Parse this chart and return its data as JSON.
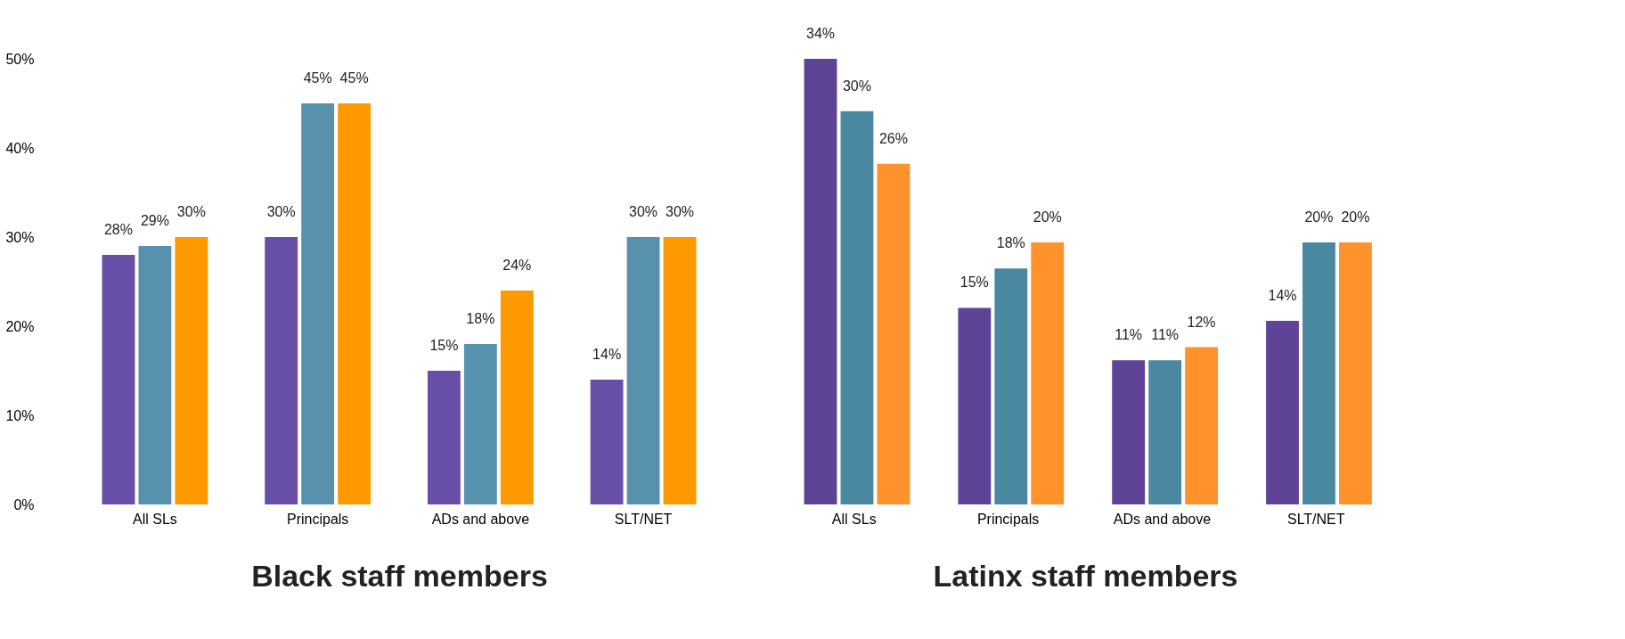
{
  "chart_data": [
    {
      "type": "bar",
      "xlabel": "Black staff members",
      "categories": [
        "All SLs",
        "Principals",
        "ADs and above",
        "SLT/NET"
      ],
      "ylim": [
        0,
        50
      ],
      "yticks": [
        {
          "value": 0,
          "label": "0%"
        },
        {
          "value": 10,
          "label": "10%"
        },
        {
          "value": 20,
          "label": "20%"
        },
        {
          "value": 30,
          "label": "30%"
        },
        {
          "value": 40,
          "label": "40%"
        },
        {
          "value": 50,
          "label": "50%"
        }
      ],
      "grid": false,
      "legend": false,
      "series": [
        {
          "color": "#674ea7",
          "values": [
            28,
            30,
            15,
            14
          ],
          "value_labels": [
            "28%",
            "30%",
            "15%",
            "14%"
          ]
        },
        {
          "color": "#5891ad",
          "values": [
            29,
            45,
            18,
            30
          ],
          "value_labels": [
            "29%",
            "45%",
            "18%",
            "30%"
          ]
        },
        {
          "color": "#ff9900",
          "values": [
            30,
            45,
            24,
            30
          ],
          "value_labels": [
            "30%",
            "45%",
            "24%",
            "30%"
          ]
        }
      ]
    },
    {
      "type": "bar",
      "xlabel": "Latinx staff members",
      "categories": [
        "All SLs",
        "Principals",
        "ADs and above",
        "SLT/NET"
      ],
      "tick_labels": "x",
      "grid": false,
      "legend": false,
      "series": [
        {
          "color": "#5e4396",
          "values": [
            34,
            15,
            11,
            14
          ],
          "value_labels": [
            "34%",
            "15%",
            "11%",
            "14%"
          ]
        },
        {
          "color": "#4a88a2",
          "values": [
            30,
            18,
            11,
            20
          ],
          "value_labels": [
            "30%",
            "18%",
            "11%",
            "20%"
          ]
        },
        {
          "color": "#ff922b",
          "values": [
            26,
            20,
            12,
            20
          ],
          "value_labels": [
            "26%",
            "20%",
            "12%",
            "20%"
          ]
        }
      ]
    }
  ]
}
